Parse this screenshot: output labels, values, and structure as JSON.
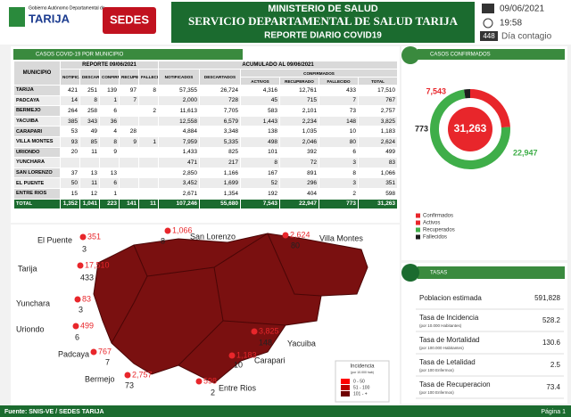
{
  "header": {
    "logo_left": "Gobierno Autónomo Departamental de",
    "logo_left_name": "TARIJA",
    "logo_right": "SEDES",
    "title1": "MINISTERIO DE SALUD",
    "title2": "SERVICIO DEPARTAMENTAL DE SALUD TARIJA",
    "title3": "REPORTE DIARIO COVID19",
    "date": "09/06/2021",
    "time": "19:58",
    "day": "448",
    "day_label": "Día contagio"
  },
  "table": {
    "title": "CASOS COVID-19 POR MUNICIPIO",
    "group_report": "REPORTE 09/06/2021",
    "group_accum": "ACUMULADO AL 09/06/2021",
    "group_confirmed": "CONFIRMADOS",
    "columns": [
      "MUNICIPIO",
      "NOTIFICADOS",
      "DESCARTADOS",
      "CONFIRMADOS",
      "RECUPERADOS",
      "FALLECIDOS",
      "NOTIFICADOS",
      "DESCARTADOS",
      "ACTIVOS",
      "RECUPERADO",
      "FALLECIDO",
      "TOTAL"
    ],
    "rows": [
      [
        "TARIJA",
        "421",
        "251",
        "139",
        "97",
        "8",
        "57,355",
        "26,724",
        "4,316",
        "12,761",
        "433",
        "17,510"
      ],
      [
        "PADCAYA",
        "14",
        "8",
        "1",
        "7",
        null,
        "2,000",
        "728",
        "45",
        "715",
        "7",
        "767"
      ],
      [
        "BERMEJO",
        "264",
        "258",
        "6",
        null,
        "2",
        "11,613",
        "7,705",
        "583",
        "2,101",
        "73",
        "2,757"
      ],
      [
        "YACUIBA",
        "385",
        "343",
        "36",
        null,
        null,
        "12,558",
        "6,579",
        "1,443",
        "2,234",
        "148",
        "3,825"
      ],
      [
        "CARAPARI",
        "53",
        "49",
        "4",
        "28",
        null,
        "4,884",
        "3,348",
        "138",
        "1,035",
        "10",
        "1,183"
      ],
      [
        "VILLA MONTES",
        "93",
        "85",
        "8",
        "9",
        "1",
        "7,959",
        "5,335",
        "498",
        "2,046",
        "80",
        "2,624"
      ],
      [
        "URIONDO",
        "20",
        "11",
        "9",
        null,
        null,
        "1,433",
        "825",
        "101",
        "392",
        "6",
        "499"
      ],
      [
        "YUNCHARA",
        null,
        null,
        null,
        null,
        null,
        "471",
        "217",
        "8",
        "72",
        "3",
        "83"
      ],
      [
        "SAN LORENZO",
        "37",
        "13",
        "13",
        null,
        null,
        "2,850",
        "1,166",
        "167",
        "891",
        "8",
        "1,066"
      ],
      [
        "EL PUENTE",
        "50",
        "11",
        "6",
        null,
        null,
        "3,452",
        "1,699",
        "52",
        "296",
        "3",
        "351"
      ],
      [
        "ENTRE RIOS",
        "15",
        "12",
        "1",
        null,
        null,
        "2,671",
        "1,354",
        "192",
        "404",
        "2",
        "598"
      ],
      [
        "TOTAL",
        "1,352",
        "1,041",
        "223",
        "141",
        "11",
        "107,246",
        "55,680",
        "7,543",
        "22,947",
        "773",
        "31,263"
      ]
    ]
  },
  "chart_data": {
    "type": "donut",
    "title": "CASOS CONFIRMADOS",
    "center_value": 31263,
    "center_label": "31,263",
    "categories": [
      "Activos",
      "Recuperados",
      "Fallecidos"
    ],
    "values": [
      7543,
      22947,
      773
    ],
    "value_labels": [
      "7,543",
      "22,947",
      "773"
    ],
    "colors": [
      "#e8262b",
      "#3fae49",
      "#1e1e1e"
    ],
    "legend": [
      "Confirmados",
      "Activos",
      "Recuperados",
      "Fallecidos"
    ],
    "legend_colors": [
      "#e8262b",
      "#e8262b",
      "#3fae49",
      "#1e1e1e"
    ]
  },
  "map": {
    "legend_title": "Incidencia",
    "legend_subtitle": "(por 10.000 hab)",
    "legend_items": [
      "0 - 50",
      "51 - 100",
      "101 - +"
    ],
    "places": [
      {
        "name": "El Puente",
        "confirmed": "351",
        "deaths": "3"
      },
      {
        "name": "San Lorenzo",
        "confirmed": "1,066",
        "deaths": "8"
      },
      {
        "name": "Villa Montes",
        "confirmed": "2,624",
        "deaths": "80"
      },
      {
        "name": "Tarija",
        "confirmed": "17,510",
        "deaths": "433"
      },
      {
        "name": "Yunchara",
        "confirmed": "83",
        "deaths": "3"
      },
      {
        "name": "Uriondo",
        "confirmed": "499",
        "deaths": "6"
      },
      {
        "name": "Padcaya",
        "confirmed": "767",
        "deaths": "7"
      },
      {
        "name": "Bermejo",
        "confirmed": "2,757",
        "deaths": "73"
      },
      {
        "name": "Entre Rios",
        "confirmed": "598",
        "deaths": "2"
      },
      {
        "name": "Carapari",
        "confirmed": "1,183",
        "deaths": "10"
      },
      {
        "name": "Yacuiba",
        "confirmed": "3,825",
        "deaths": "148"
      }
    ]
  },
  "rates": {
    "title": "TASAS",
    "rows": [
      {
        "label": "Poblacion estimada",
        "value": "591,828"
      },
      {
        "label": "Tasa de Incidencia",
        "note": "(por 10.000 Habitantes)",
        "value": "528.2"
      },
      {
        "label": "Tasa de Mortalidad",
        "note": "(por 100.000 Habitantes)",
        "value": "130.6"
      },
      {
        "label": "Tasa de Letalidad",
        "note": "(por 100 Enfermos)",
        "value": "2.5"
      },
      {
        "label": "Tasa de Recuperacion",
        "note": "(por 100 Enfermos)",
        "value": "73.4"
      }
    ]
  },
  "footer": {
    "source": "Fuente: SNIS-VE / SEDES TARIJA",
    "page": "Página 1"
  }
}
